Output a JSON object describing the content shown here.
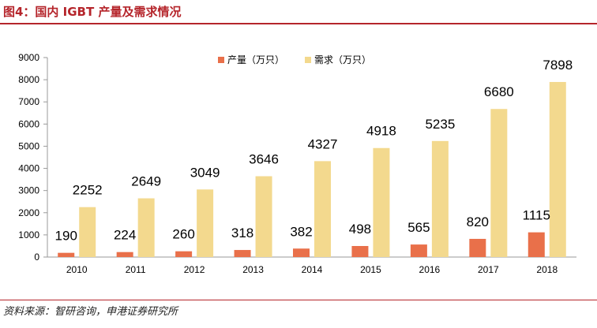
{
  "figure": {
    "title": "图4：国内 IGBT 产量及需求情况",
    "source": "资料来源：智研咨询，申港证券研究所"
  },
  "chart_data": {
    "type": "bar",
    "categories": [
      "2010",
      "2011",
      "2012",
      "2013",
      "2014",
      "2015",
      "2016",
      "2017",
      "2018"
    ],
    "series": [
      {
        "name": "产量（万只）",
        "color": "#e9704a",
        "values": [
          190,
          224,
          260,
          318,
          382,
          498,
          565,
          820,
          1115
        ]
      },
      {
        "name": "需求（万只）",
        "color": "#f3d98e",
        "values": [
          2252,
          2649,
          3049,
          3646,
          4327,
          4918,
          5235,
          6680,
          7898
        ]
      }
    ],
    "ylim": [
      0,
      9000
    ],
    "yticks": [
      0,
      1000,
      2000,
      3000,
      4000,
      5000,
      6000,
      7000,
      8000,
      9000
    ],
    "grid": false,
    "legend": "top-center",
    "data_labels": true
  }
}
